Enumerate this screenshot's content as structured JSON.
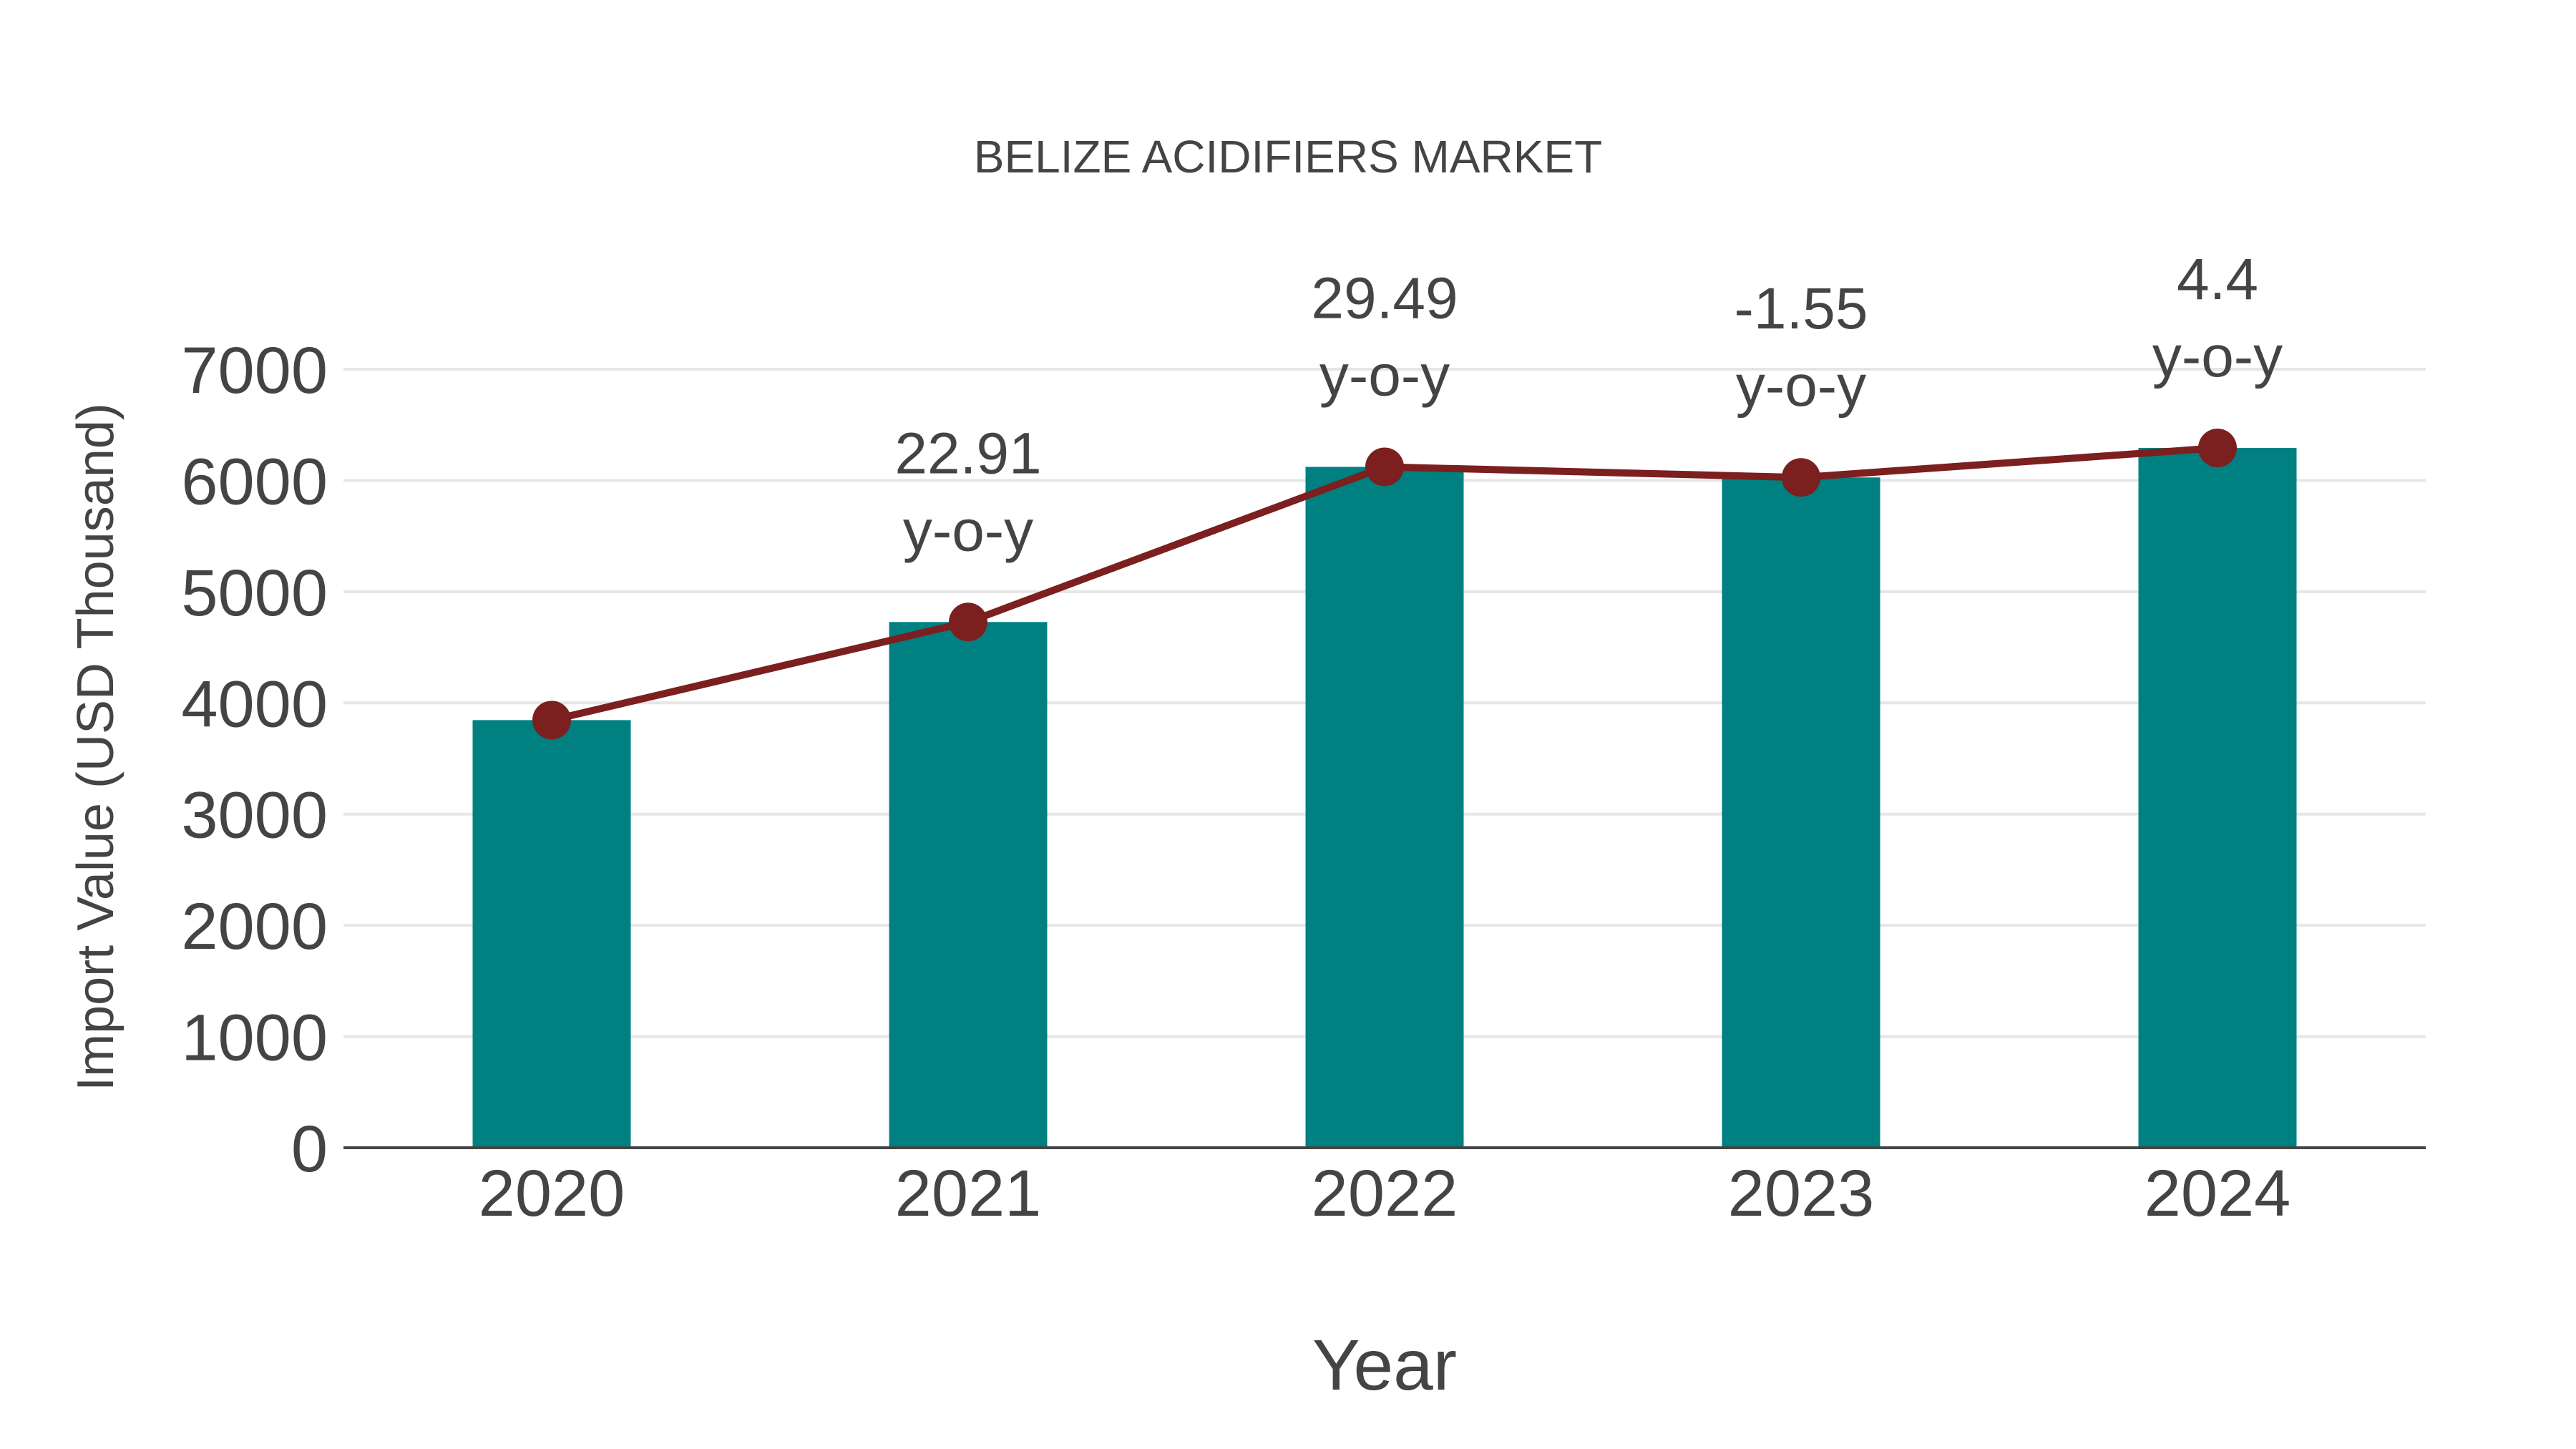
{
  "chart_data": {
    "type": "bar",
    "title": "BELIZE ACIDIFIERS MARKET",
    "xlabel": "Year",
    "ylabel": "Import Value (USD Thousand)",
    "categories": [
      "2020",
      "2021",
      "2022",
      "2023",
      "2024"
    ],
    "series": [
      {
        "name": "Import Value",
        "type": "bar",
        "color": "#008080",
        "values": [
          3845,
          4727,
          6122,
          6027,
          6292
        ]
      },
      {
        "name": "Trend",
        "type": "line",
        "color": "#7B1F1F",
        "values": [
          3845,
          4727,
          6122,
          6027,
          6292
        ]
      }
    ],
    "annotations": [
      {
        "category": "2021",
        "value": "22.91",
        "suffix": "y-o-y"
      },
      {
        "category": "2022",
        "value": "29.49",
        "suffix": "y-o-y"
      },
      {
        "category": "2023",
        "value": "-1.55",
        "suffix": "y-o-y"
      },
      {
        "category": "2024",
        "value": "4.4",
        "suffix": "y-o-y"
      }
    ],
    "yticks": [
      "0",
      "1000",
      "2000",
      "3000",
      "4000",
      "5000",
      "6000",
      "7000"
    ],
    "ylim": [
      0,
      7000
    ],
    "grid": true,
    "legend": false
  }
}
